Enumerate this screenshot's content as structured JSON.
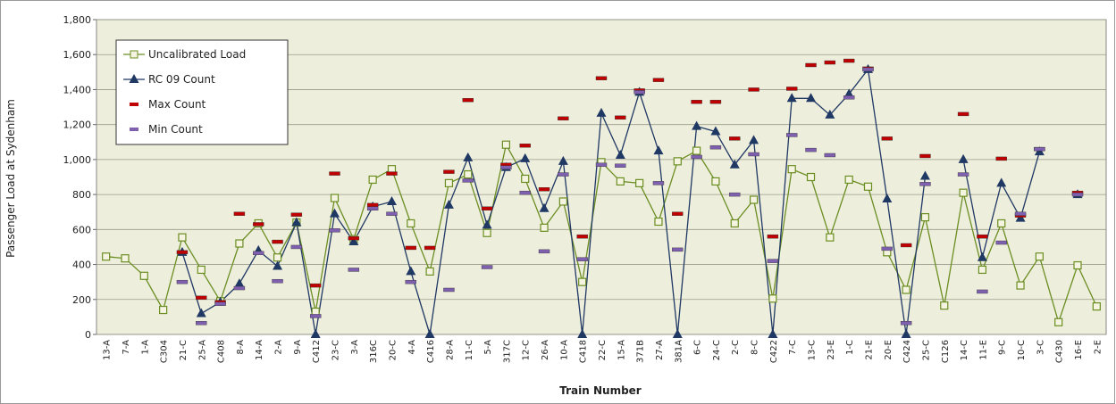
{
  "chart_data": {
    "type": "line",
    "y_label": "Passenger Load at Sydenham",
    "x_label": "Train Number",
    "categories": [
      "13-A",
      "7-A",
      "1-A",
      "C304",
      "21-C",
      "25-A",
      "C408",
      "8-A",
      "14-A",
      "2-A",
      "9-A",
      "C412",
      "23-C",
      "3-A",
      "316C",
      "20-C",
      "4-A",
      "C416",
      "28-A",
      "11-C",
      "5-A",
      "317C",
      "12-C",
      "26-A",
      "10-A",
      "C418",
      "22-C",
      "15-A",
      "371B",
      "27-A",
      "381A",
      "6-C",
      "24-C",
      "2-C",
      "8-C",
      "C422",
      "7-C",
      "13-C",
      "23-E",
      "1-C",
      "21-E",
      "20-E",
      "C424",
      "25-C",
      "C126",
      "14-C",
      "11-E",
      "9-C",
      "10-C",
      "3-C",
      "C430",
      "16-E",
      "2-E"
    ],
    "series": [
      {
        "name": "Uncalibrated Load",
        "color": "#6b8e23",
        "marker": "square",
        "line": true,
        "values": [
          445,
          435,
          335,
          140,
          555,
          370,
          190,
          520,
          635,
          440,
          640,
          130,
          780,
          545,
          885,
          945,
          635,
          360,
          865,
          915,
          580,
          1085,
          890,
          610,
          760,
          300,
          985,
          875,
          865,
          645,
          990,
          1050,
          875,
          635,
          770,
          205,
          945,
          900,
          555,
          885,
          845,
          470,
          255,
          670,
          165,
          810,
          370,
          635,
          280,
          445,
          70,
          395,
          160
        ]
      },
      {
        "name": "RC 09 Count",
        "color": "#1f3864",
        "marker": "triangle",
        "line": true,
        "values": [
          null,
          null,
          null,
          null,
          470,
          120,
          185,
          290,
          480,
          390,
          640,
          0,
          690,
          530,
          730,
          760,
          360,
          0,
          740,
          1010,
          625,
          955,
          1005,
          720,
          990,
          0,
          1265,
          1025,
          1385,
          1050,
          0,
          1190,
          1160,
          970,
          1110,
          0,
          1350,
          1350,
          1255,
          1375,
          1515,
          775,
          0,
          905,
          null,
          1000,
          440,
          865,
          665,
          1045,
          null,
          800,
          null
        ]
      },
      {
        "name": "Max Count",
        "color": "#c00000",
        "marker": "dash",
        "line": false,
        "values": [
          null,
          null,
          null,
          null,
          470,
          210,
          185,
          690,
          630,
          530,
          685,
          280,
          920,
          550,
          740,
          920,
          495,
          495,
          930,
          1340,
          720,
          970,
          1080,
          830,
          1235,
          560,
          1465,
          1240,
          1395,
          1455,
          690,
          1330,
          1330,
          1120,
          1400,
          560,
          1405,
          1540,
          1555,
          1565,
          1520,
          1120,
          510,
          1020,
          null,
          1260,
          560,
          1005,
          680,
          1060,
          null,
          810,
          null
        ]
      },
      {
        "name": "Min Count",
        "color": "#7f5fb0",
        "marker": "dash",
        "line": false,
        "values": [
          null,
          null,
          null,
          null,
          300,
          65,
          175,
          265,
          465,
          305,
          500,
          105,
          595,
          370,
          720,
          690,
          300,
          null,
          255,
          880,
          385,
          955,
          810,
          475,
          915,
          430,
          970,
          965,
          1385,
          865,
          485,
          1015,
          1070,
          800,
          1030,
          420,
          1140,
          1055,
          1025,
          1355,
          1515,
          490,
          65,
          860,
          null,
          915,
          245,
          525,
          690,
          1060,
          null,
          800,
          null
        ]
      }
    ],
    "ylim": [
      0,
      1800
    ],
    "yticks": [
      0,
      200,
      400,
      600,
      800,
      {
        "value": 1000,
        "label": "1,000"
      },
      {
        "value": 1200,
        "label": "1,200"
      },
      {
        "value": 1400,
        "label": "1,400"
      },
      {
        "value": 1600,
        "label": "1,600"
      },
      {
        "value": 1800,
        "label": "1,800"
      }
    ],
    "grid": true,
    "legend": "upper left",
    "plot_background": "#eeeedc"
  }
}
